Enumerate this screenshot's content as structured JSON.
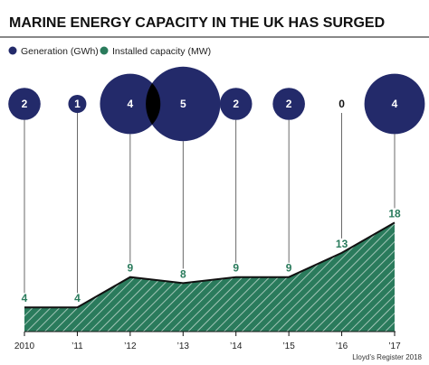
{
  "title": "MARINE ENERGY CAPACITY IN THE UK HAS SURGED",
  "legend": [
    {
      "label": "Generation (GWh)",
      "color": "#232a6a"
    },
    {
      "label": "Installed capacity (MW)",
      "color": "#2a7b5c"
    }
  ],
  "credit": "Lloyd’s Register 2018",
  "chart_data": {
    "type": "area",
    "title": "MARINE ENERGY CAPACITY IN THE UK HAS SURGED",
    "categories": [
      "2010",
      "’11",
      "’12",
      "’13",
      "’14",
      "’15",
      "’16",
      "’17"
    ],
    "series": [
      {
        "name": "Installed capacity (MW)",
        "type": "area",
        "values": [
          4,
          4,
          9,
          8,
          9,
          9,
          13,
          18
        ],
        "color": "#2a7b5c"
      },
      {
        "name": "Generation (GWh)",
        "type": "bubble",
        "values": [
          2,
          1,
          4,
          5,
          2,
          2,
          0,
          4
        ],
        "color": "#232a6a"
      }
    ],
    "ylim": [
      0,
      20
    ],
    "grid": false,
    "legend_position": "top-left"
  }
}
